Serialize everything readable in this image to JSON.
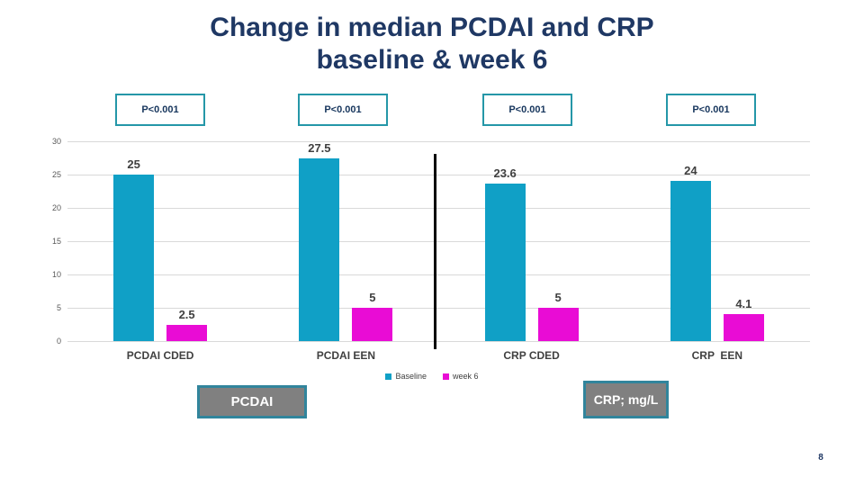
{
  "slide": {
    "title_line1": "Change in median PCDAI and CRP",
    "title_line2": "baseline & week 6",
    "page_number": "8"
  },
  "significance_labels": [
    "P<0.001",
    "P<0.001",
    "P<0.001",
    "P<0.001"
  ],
  "chart_data": {
    "type": "bar",
    "title": "Change in median PCDAI and CRP baseline & week 6",
    "categories": [
      "PCDAI CDED",
      "PCDAI EEN",
      "CRP CDED",
      "CRP  EEN"
    ],
    "series": [
      {
        "name": "Baseline",
        "color": "#10A0C6",
        "values": [
          25,
          27.5,
          23.6,
          24
        ]
      },
      {
        "name": "week 6",
        "color": "#E90CD5",
        "values": [
          2.5,
          5,
          5,
          4.1
        ]
      }
    ],
    "ylim": [
      0,
      30
    ],
    "yticks": [
      0,
      5,
      10,
      15,
      20,
      25,
      30
    ],
    "grid": true,
    "legend_position": "bottom",
    "separator_after_category": 2
  },
  "axis_boxes": {
    "left_label": "PCDAI",
    "right_label": "CRP; mg/L"
  },
  "colors": {
    "title_navy": "#1F3864",
    "baseline_bar": "#10A0C6",
    "week6_bar": "#E90CD5",
    "pbox_border": "#2597A8",
    "footer_box_fill": "#808080",
    "footer_box_border": "#31859C",
    "gridline": "#D9D9D9"
  }
}
